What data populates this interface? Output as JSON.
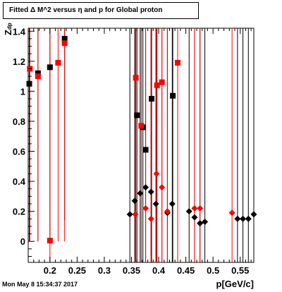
{
  "title": "Fitted Δ M^2 versus η and p for Global proton",
  "timestamp": "Mon May  8 15:34:37 2017",
  "chart_data": {
    "type": "scatter",
    "xlabel": "p[GeV/c]",
    "ylabel": "Z",
    "ylabel_sub": "dp",
    "xlim": [
      0.16,
      0.575
    ],
    "ylim": [
      -0.14,
      1.42
    ],
    "xticks": [
      "0.2",
      "0.25",
      "0.3",
      "0.35",
      "0.4",
      "0.45",
      "0.5",
      "0.55"
    ],
    "xtick_values": [
      0.2,
      0.25,
      0.3,
      0.35,
      0.4,
      0.45,
      0.5,
      0.55
    ],
    "yticks": [
      "0",
      "0.2",
      "0.4",
      "0.6",
      "0.8",
      "1",
      "1.2",
      "1.4"
    ],
    "ytick_values": [
      0,
      0.2,
      0.4,
      0.6,
      0.8,
      1.0,
      1.2,
      1.4
    ],
    "series": [
      {
        "marker": "square",
        "color": "#000000",
        "points": [
          {
            "x": 0.162,
            "y": 1.05,
            "lo": 0.0,
            "hi": 1.42
          },
          {
            "x": 0.178,
            "y": 1.12,
            "lo": 0.0,
            "hi": 1.42
          },
          {
            "x": 0.2,
            "y": 1.16,
            "lo": 0.0,
            "hi": 1.42
          },
          {
            "x": 0.227,
            "y": 1.35,
            "lo": 0.14,
            "hi": 1.42
          },
          {
            "x": 0.36,
            "y": 0.84,
            "lo": -0.14,
            "hi": 1.42
          },
          {
            "x": 0.371,
            "y": 0.76,
            "lo": -0.14,
            "hi": 1.42
          },
          {
            "x": 0.376,
            "y": 0.61,
            "lo": -0.14,
            "hi": 1.42
          },
          {
            "x": 0.387,
            "y": 0.95,
            "lo": -0.14,
            "hi": 1.42
          },
          {
            "x": 0.426,
            "y": 0.97,
            "lo": -0.14,
            "hi": 1.42
          }
        ]
      },
      {
        "marker": "square",
        "color": "#ff0000",
        "points": [
          {
            "x": 0.163,
            "y": 1.15,
            "lo": 0.0,
            "hi": 1.42
          },
          {
            "x": 0.178,
            "y": 1.1,
            "lo": 0.0,
            "hi": 1.42
          },
          {
            "x": 0.2,
            "y": 0.005,
            "lo": -0.14,
            "hi": 1.42
          },
          {
            "x": 0.215,
            "y": 1.19,
            "lo": 0.0,
            "hi": 1.42
          },
          {
            "x": 0.227,
            "y": 1.32,
            "lo": 0.0,
            "hi": 1.42
          },
          {
            "x": 0.358,
            "y": 1.09,
            "lo": -0.14,
            "hi": 1.42
          },
          {
            "x": 0.368,
            "y": 0.77,
            "lo": -0.14,
            "hi": 1.42
          },
          {
            "x": 0.397,
            "y": 1.04,
            "lo": -0.14,
            "hi": 1.42
          },
          {
            "x": 0.406,
            "y": 1.06,
            "lo": -0.14,
            "hi": 1.42
          },
          {
            "x": 0.435,
            "y": 1.19,
            "lo": -0.14,
            "hi": 1.42
          }
        ]
      },
      {
        "marker": "diamond",
        "color": "#000000",
        "points": [
          {
            "x": 0.347,
            "y": 0.18,
            "lo": -0.14,
            "hi": 1.42
          },
          {
            "x": 0.356,
            "y": 0.27,
            "lo": -0.14,
            "hi": 1.42
          },
          {
            "x": 0.366,
            "y": 0.32,
            "lo": -0.14,
            "hi": 1.42
          },
          {
            "x": 0.376,
            "y": 0.36,
            "lo": -0.14,
            "hi": 1.42
          },
          {
            "x": 0.386,
            "y": 0.33,
            "lo": -0.14,
            "hi": 1.42
          },
          {
            "x": 0.395,
            "y": 0.25,
            "lo": -0.14,
            "hi": 1.42
          },
          {
            "x": 0.416,
            "y": 0.19,
            "lo": -0.14,
            "hi": 1.42
          },
          {
            "x": 0.425,
            "y": 0.25,
            "lo": -0.14,
            "hi": 1.42
          },
          {
            "x": 0.456,
            "y": 0.2,
            "lo": -0.14,
            "hi": 1.42
          },
          {
            "x": 0.466,
            "y": 0.16,
            "lo": -0.14,
            "hi": 1.42
          },
          {
            "x": 0.476,
            "y": 0.12,
            "lo": -0.14,
            "hi": 1.42
          },
          {
            "x": 0.485,
            "y": 0.13,
            "lo": -0.14,
            "hi": 1.42
          },
          {
            "x": 0.545,
            "y": 0.15,
            "lo": -0.14,
            "hi": 1.42
          },
          {
            "x": 0.555,
            "y": 0.15,
            "lo": -0.14,
            "hi": 1.42
          },
          {
            "x": 0.565,
            "y": 0.15,
            "lo": -0.14,
            "hi": 1.42
          },
          {
            "x": 0.575,
            "y": 0.18,
            "lo": -0.14,
            "hi": 1.42
          }
        ]
      },
      {
        "marker": "diamond",
        "color": "#ff0000",
        "points": [
          {
            "x": 0.357,
            "y": 0.18,
            "lo": -0.14,
            "hi": 1.42
          },
          {
            "x": 0.376,
            "y": 0.22,
            "lo": -0.14,
            "hi": 1.42
          },
          {
            "x": 0.386,
            "y": 0.15,
            "lo": -0.14,
            "hi": 1.42
          },
          {
            "x": 0.396,
            "y": 0.45,
            "lo": -0.14,
            "hi": 1.42
          },
          {
            "x": 0.406,
            "y": 0.36,
            "lo": -0.14,
            "hi": 1.42
          },
          {
            "x": 0.416,
            "y": 0.2,
            "lo": -0.14,
            "hi": 1.42
          },
          {
            "x": 0.466,
            "y": 0.22,
            "lo": -0.14,
            "hi": 1.42
          },
          {
            "x": 0.476,
            "y": 0.22,
            "lo": -0.14,
            "hi": 1.42
          },
          {
            "x": 0.535,
            "y": 0.19,
            "lo": -0.14,
            "hi": 1.42
          }
        ]
      }
    ]
  }
}
